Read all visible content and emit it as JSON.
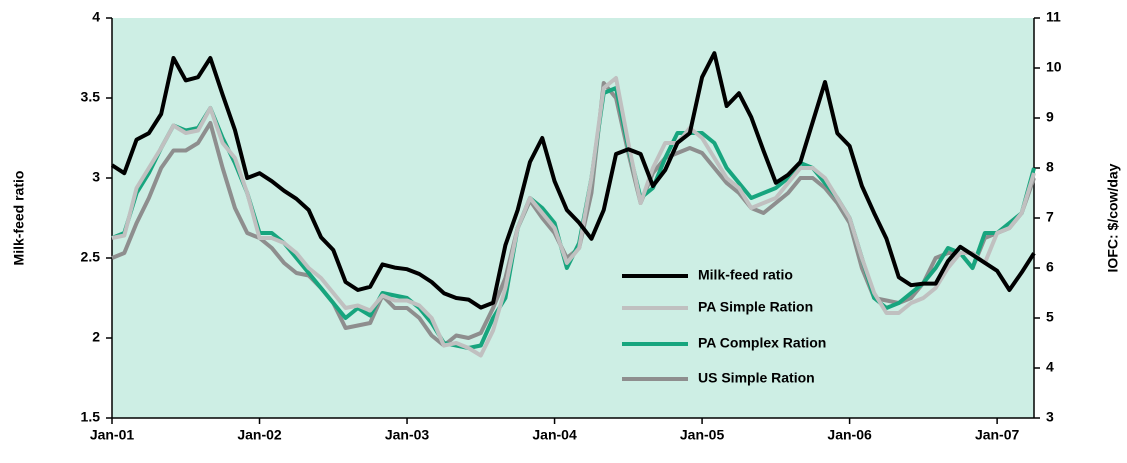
{
  "chart_data": {
    "type": "line",
    "y_label": "Milk-feed ratio",
    "y2_label": "IOFC: $/cow/day",
    "categories": [
      "Jan-01",
      null,
      null,
      null,
      null,
      null,
      null,
      null,
      null,
      null,
      null,
      null,
      "Jan-02",
      null,
      null,
      null,
      null,
      null,
      null,
      null,
      null,
      null,
      null,
      null,
      "Jan-03",
      null,
      null,
      null,
      null,
      null,
      null,
      null,
      null,
      null,
      null,
      null,
      "Jan-04",
      null,
      null,
      null,
      null,
      null,
      null,
      null,
      null,
      null,
      null,
      null,
      "Jan-05",
      null,
      null,
      null,
      null,
      null,
      null,
      null,
      null,
      null,
      null,
      null,
      "Jan-06",
      null,
      null,
      null,
      null,
      null,
      null,
      null,
      null,
      null,
      null,
      null,
      "Jan-07",
      null,
      null,
      null
    ],
    "ylim": [
      1.5,
      4
    ],
    "yticks": [
      1.5,
      2,
      2.5,
      3,
      3.5,
      4
    ],
    "y2lim": [
      3,
      11
    ],
    "y2ticks": [
      3,
      4,
      5,
      6,
      7,
      8,
      9,
      10,
      11
    ],
    "legend": "lower-center",
    "series": [
      {
        "name": "Milk-feed ratio",
        "color": "#000000",
        "values": [
          3.08,
          3.03,
          3.24,
          3.28,
          3.4,
          3.75,
          3.61,
          3.63,
          3.75,
          3.52,
          3.3,
          3.0,
          3.03,
          2.98,
          2.92,
          2.87,
          2.8,
          2.63,
          2.55,
          2.35,
          2.3,
          2.32,
          2.46,
          2.44,
          2.43,
          2.4,
          2.35,
          2.28,
          2.25,
          2.24,
          2.19,
          2.22,
          2.58,
          2.8,
          3.1,
          3.25,
          2.98,
          2.8,
          2.72,
          2.62,
          2.8,
          3.15,
          3.18,
          3.15,
          2.95,
          3.05,
          3.22,
          3.28,
          3.63,
          3.78,
          3.45,
          3.53,
          3.38,
          3.17,
          2.97,
          3.02,
          3.1,
          3.35,
          3.6,
          3.28,
          3.2,
          2.95,
          2.78,
          2.62,
          2.38,
          2.33,
          2.34,
          2.34,
          2.48,
          2.57,
          2.52,
          2.47,
          2.42,
          2.3,
          2.41,
          2.53
        ]
      },
      {
        "name": "PA Simple Ration",
        "color": "#c0c0c0",
        "axis": "y2",
        "values": [
          6.6,
          6.65,
          7.6,
          8.0,
          8.4,
          8.85,
          8.7,
          8.75,
          9.2,
          8.5,
          8.2,
          7.5,
          6.6,
          6.6,
          6.5,
          6.3,
          6.0,
          5.8,
          5.5,
          5.2,
          5.25,
          5.15,
          5.45,
          5.35,
          5.35,
          5.25,
          5.0,
          4.45,
          4.5,
          4.4,
          4.25,
          4.75,
          5.6,
          6.8,
          7.4,
          7.1,
          6.8,
          6.1,
          6.4,
          7.8,
          9.6,
          9.8,
          8.5,
          7.3,
          8.0,
          8.5,
          8.5,
          8.8,
          8.6,
          8.2,
          7.8,
          7.6,
          7.2,
          7.3,
          7.4,
          7.7,
          8.0,
          8.0,
          7.8,
          7.4,
          7.0,
          6.2,
          5.5,
          5.1,
          5.1,
          5.3,
          5.4,
          5.6,
          6.0,
          6.3,
          6.3,
          6.1,
          6.7,
          6.8,
          7.1,
          7.9
        ]
      },
      {
        "name": "PA Complex Ration",
        "color": "#17a57e",
        "axis": "y2",
        "values": [
          6.6,
          6.7,
          7.5,
          7.9,
          8.4,
          8.85,
          8.75,
          8.8,
          9.2,
          8.6,
          8.1,
          7.5,
          6.7,
          6.7,
          6.5,
          6.2,
          5.9,
          5.6,
          5.3,
          5.0,
          5.2,
          5.05,
          5.5,
          5.45,
          5.4,
          5.2,
          4.9,
          4.5,
          4.45,
          4.4,
          4.45,
          5.0,
          5.4,
          6.8,
          7.4,
          7.2,
          6.9,
          6.0,
          6.5,
          7.8,
          9.5,
          9.6,
          8.4,
          7.4,
          7.6,
          8.2,
          8.7,
          8.7,
          8.7,
          8.5,
          8.0,
          7.7,
          7.4,
          7.5,
          7.6,
          7.8,
          8.1,
          8.0,
          7.7,
          7.4,
          7.0,
          6.2,
          5.4,
          5.2,
          5.3,
          5.5,
          5.7,
          6.0,
          6.4,
          6.3,
          6.0,
          6.7,
          6.7,
          6.9,
          7.1,
          8.0
        ]
      },
      {
        "name": "US Simple Ration",
        "color": "#8e8e8e",
        "axis": "y2",
        "values": [
          6.2,
          6.3,
          6.9,
          7.4,
          8.0,
          8.35,
          8.35,
          8.5,
          8.9,
          8.0,
          7.2,
          6.7,
          6.6,
          6.4,
          6.1,
          5.9,
          5.85,
          5.6,
          5.3,
          4.8,
          4.85,
          4.9,
          5.45,
          5.2,
          5.2,
          5.0,
          4.65,
          4.45,
          4.65,
          4.6,
          4.7,
          5.2,
          5.8,
          6.8,
          7.35,
          7.0,
          6.7,
          6.2,
          6.4,
          7.5,
          9.7,
          9.4,
          8.3,
          7.3,
          7.9,
          8.2,
          8.3,
          8.4,
          8.3,
          8.0,
          7.7,
          7.5,
          7.2,
          7.1,
          7.3,
          7.5,
          7.8,
          7.8,
          7.6,
          7.3,
          6.9,
          6.0,
          5.4,
          5.35,
          5.3,
          5.4,
          5.7,
          6.2,
          6.3,
          6.3,
          6.0,
          6.6,
          6.7,
          6.8,
          7.1,
          7.8
        ]
      }
    ]
  }
}
